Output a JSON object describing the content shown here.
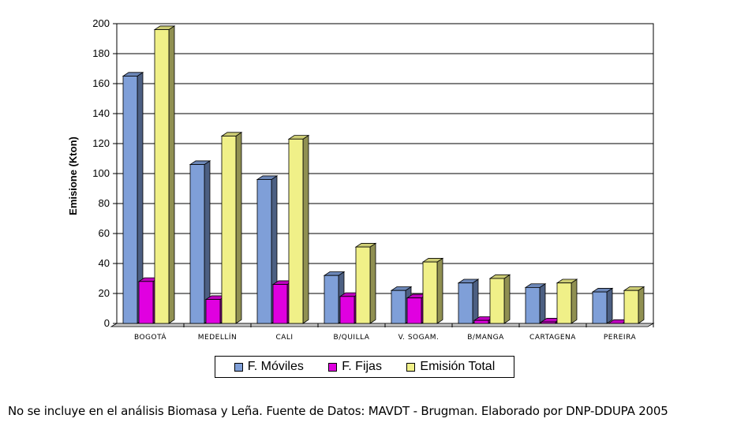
{
  "chart_data": {
    "type": "bar",
    "categories": [
      "BOGOTÁ",
      "MEDELLÍN",
      "CALI",
      "B/QUILLA",
      "V. SOGAM.",
      "B/MANGA",
      "CARTAGENA",
      "PEREIRA"
    ],
    "series": [
      {
        "name": "F. Móviles",
        "color": "#7f9fd8",
        "values": [
          165,
          106,
          96,
          32,
          22,
          27,
          24,
          21
        ]
      },
      {
        "name": "F. Fijas",
        "color": "#e000e0",
        "values": [
          28,
          16,
          26,
          18,
          17,
          2,
          1,
          0
        ]
      },
      {
        "name": "Emisión Total",
        "color": "#f0f088",
        "values": [
          196,
          125,
          123,
          51,
          41,
          30,
          27,
          22
        ]
      }
    ],
    "yticks": [
      "0",
      "20",
      "40",
      "60",
      "80",
      "100",
      "120",
      "140",
      "160",
      "180",
      "200"
    ],
    "ylim": [
      0,
      200
    ],
    "ylabel": "Emisione (Kton)",
    "grid": true,
    "legend_position": "bottom"
  },
  "footnote": "No se incluye en el análisis Biomasa y Leña.  Fuente de Datos: MAVDT - Brugman. Elaborado por DNP-DDUPA  2005"
}
